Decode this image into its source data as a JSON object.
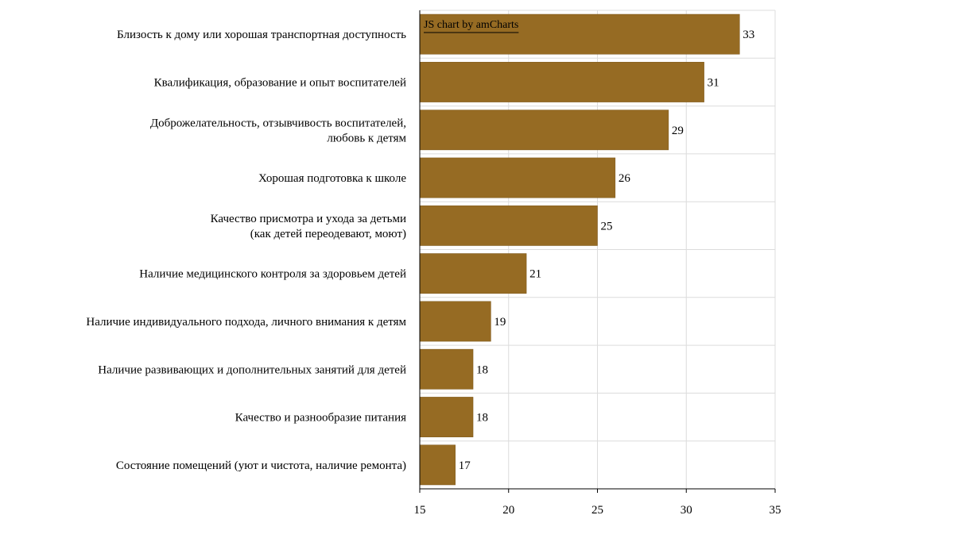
{
  "chart_data": {
    "type": "bar",
    "orientation": "horizontal",
    "categories": [
      [
        "Близость к дому или хорошая транспортная доступность"
      ],
      [
        "Квалификация, образование и опыт воспитателей"
      ],
      [
        "Доброжелательность, отзывчивость воспитателей,",
        "любовь к детям"
      ],
      [
        "Хорошая подготовка к школе"
      ],
      [
        "Качество присмотра и ухода за детьми",
        "(как детей переодевают, моют)"
      ],
      [
        "Наличие медицинского контроля за здоровьем детей"
      ],
      [
        "Наличие индивидуального подхода, личного внимания к детям"
      ],
      [
        "Наличие развивающих и дополнительных занятий для детей"
      ],
      [
        "Качество и разнообразие питания"
      ],
      [
        "Состояние помещений (уют и чистота, наличие ремонта)"
      ]
    ],
    "values": [
      33,
      31,
      29,
      26,
      25,
      21,
      19,
      18,
      18,
      17
    ],
    "xlim": [
      15,
      35
    ],
    "xticks": [
      15,
      20,
      25,
      30,
      35
    ],
    "grid": true,
    "bar_color": "#966b23",
    "credit": "JS chart by amCharts"
  }
}
